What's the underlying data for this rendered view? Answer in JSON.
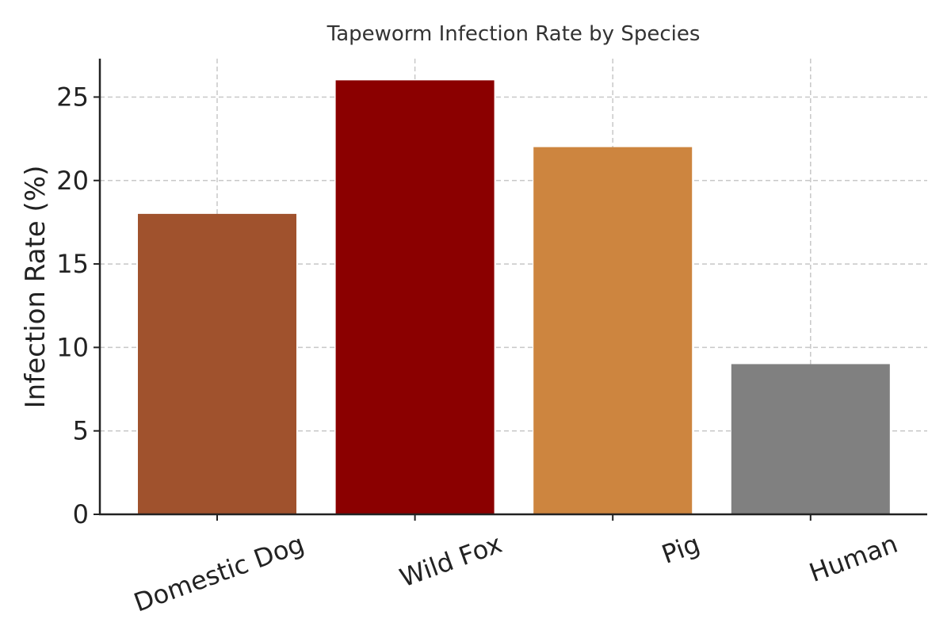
{
  "chart_data": {
    "type": "bar",
    "title": "Tapeworm Infection Rate by Species",
    "xlabel": "",
    "ylabel": "Infection Rate (%)",
    "categories": [
      "Domestic Dog",
      "Wild Fox",
      "Pig",
      "Human"
    ],
    "values": [
      18,
      26,
      22,
      9
    ],
    "colors": [
      "#a0522d",
      "#8b0000",
      "#cd853f",
      "#808080"
    ],
    "ylim": [
      0,
      27.3
    ],
    "yticks": [
      0,
      5,
      10,
      15,
      20,
      25
    ],
    "grid": true,
    "legend": "none"
  }
}
